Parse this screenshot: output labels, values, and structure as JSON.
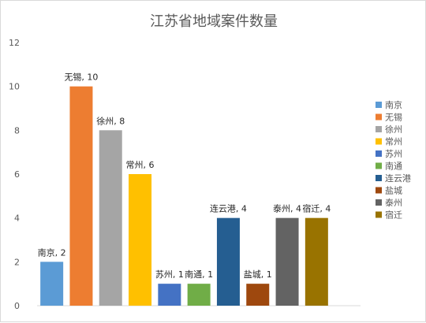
{
  "chart_data": {
    "type": "bar",
    "title": "江苏省地域案件数量",
    "xlabel": "",
    "ylabel": "",
    "ylim": [
      0,
      12
    ],
    "yticks": [
      0,
      2,
      4,
      6,
      8,
      10,
      12
    ],
    "grid": false,
    "legend_position": "right",
    "categories": [
      "南京",
      "无锡",
      "徐州",
      "常州",
      "苏州",
      "南通",
      "连云港",
      "盐城",
      "泰州",
      "宿迁"
    ],
    "values": [
      2,
      10,
      8,
      6,
      1,
      1,
      4,
      1,
      4,
      4
    ],
    "data_labels": [
      "南京, 2",
      "无锡, 10",
      "徐州, 8",
      "常州, 6",
      "苏州, 1",
      "南通, 1",
      "连云港, 4",
      "盐城, 1",
      "泰州, 4",
      "宿迁, 4"
    ],
    "colors": [
      "#5B9BD5",
      "#ED7D31",
      "#A5A5A5",
      "#FFC000",
      "#4472C4",
      "#70AD47",
      "#255E91",
      "#9E480E",
      "#636363",
      "#997300"
    ]
  }
}
